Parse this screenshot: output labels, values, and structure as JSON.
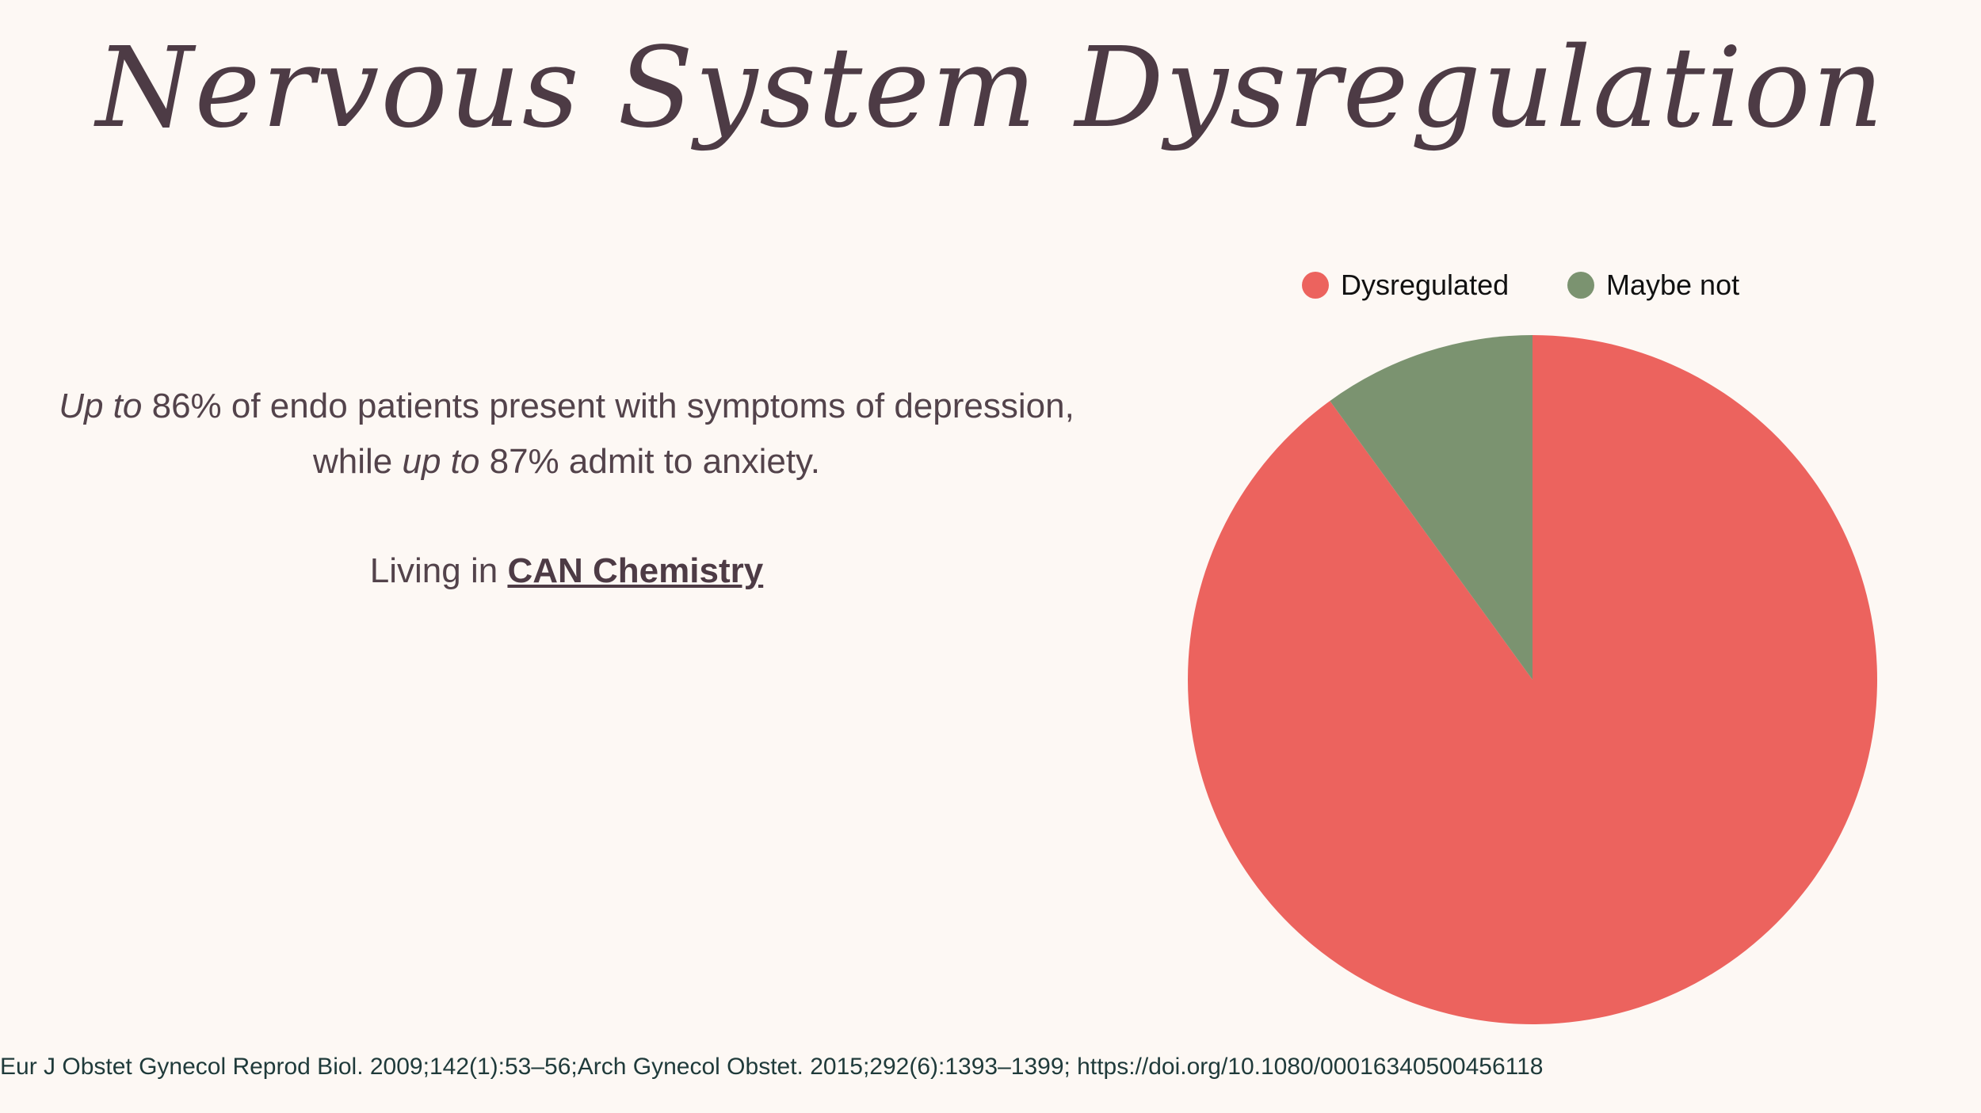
{
  "title": "Nervous System Dysregulation",
  "text": {
    "line1_em": "Up to",
    "line1_rest": " 86% of endo patients present with symptoms of depression,",
    "line2_start": "while ",
    "line2_em": "up to",
    "line2_rest": " 87% admit to anxiety.",
    "line3_start": "Living in ",
    "line3_link": "CAN Chemistry"
  },
  "citation": "Eur J Obstet Gynecol Reprod Biol. 2009;142(1):53–56;Arch Gynecol Obstet. 2015;292(6):1393–1399; https://doi.org/10.1080/00016340500456118",
  "chart_data": {
    "type": "pie",
    "categories": [
      "Dysregulated",
      "Maybe not"
    ],
    "values": [
      90,
      10
    ],
    "colors": [
      "#ec635e",
      "#7b9370"
    ],
    "legend": "top"
  }
}
